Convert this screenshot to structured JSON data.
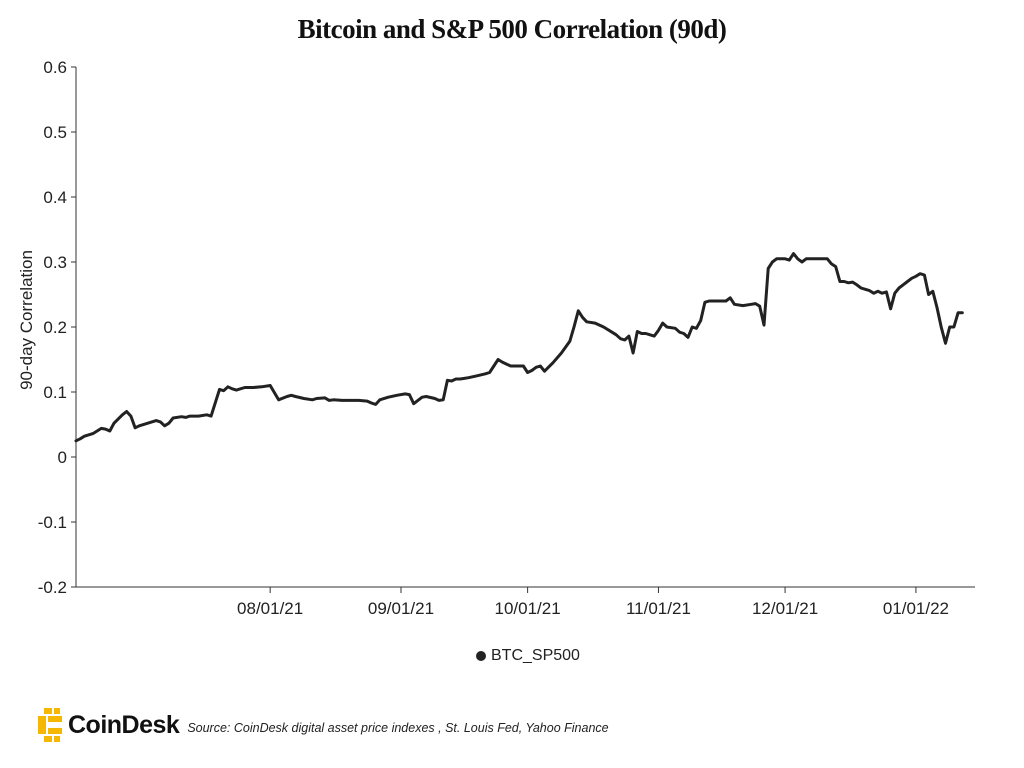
{
  "chart_data": {
    "type": "line",
    "title": "Bitcoin and S&P 500 Correlation (90d)",
    "ylabel": "90-day Correlation",
    "xlabel": "",
    "ylim": [
      -0.2,
      0.6
    ],
    "yticks": [
      "0.6",
      "0.5",
      "0.4",
      "0.3",
      "0.2",
      "0.1",
      "0",
      "-0.1",
      "-0.2"
    ],
    "ytick_values": [
      0.6,
      0.5,
      0.4,
      0.3,
      0.2,
      0.1,
      0,
      -0.1,
      -0.2
    ],
    "xlim": [
      "2021-06-16",
      "2022-01-15"
    ],
    "xticks": [
      {
        "label": "08/01/21",
        "date": "2021-08-01"
      },
      {
        "label": "09/01/21",
        "date": "2021-09-01"
      },
      {
        "label": "10/01/21",
        "date": "2021-10-01"
      },
      {
        "label": "11/01/21",
        "date": "2021-11-01"
      },
      {
        "label": "12/01/21",
        "date": "2021-12-01"
      },
      {
        "label": "01/01/22",
        "date": "2022-01-01"
      }
    ],
    "grid": false,
    "legend_position": "bottom-center",
    "series": [
      {
        "name": "BTC_SP500",
        "color": "#222222",
        "points": [
          [
            "2021-06-16",
            0.025
          ],
          [
            "2021-06-17",
            0.028
          ],
          [
            "2021-06-18",
            0.032
          ],
          [
            "2021-06-20",
            0.036
          ],
          [
            "2021-06-21",
            0.04
          ],
          [
            "2021-06-22",
            0.044
          ],
          [
            "2021-06-23",
            0.043
          ],
          [
            "2021-06-24",
            0.04
          ],
          [
            "2021-06-25",
            0.052
          ],
          [
            "2021-06-27",
            0.065
          ],
          [
            "2021-06-28",
            0.07
          ],
          [
            "2021-06-29",
            0.063
          ],
          [
            "2021-06-30",
            0.045
          ],
          [
            "2021-07-01",
            0.048
          ],
          [
            "2021-07-03",
            0.052
          ],
          [
            "2021-07-05",
            0.056
          ],
          [
            "2021-07-06",
            0.054
          ],
          [
            "2021-07-07",
            0.048
          ],
          [
            "2021-07-08",
            0.052
          ],
          [
            "2021-07-09",
            0.06
          ],
          [
            "2021-07-11",
            0.062
          ],
          [
            "2021-07-12",
            0.061
          ],
          [
            "2021-07-13",
            0.063
          ],
          [
            "2021-07-15",
            0.063
          ],
          [
            "2021-07-17",
            0.065
          ],
          [
            "2021-07-18",
            0.063
          ],
          [
            "2021-07-20",
            0.104
          ],
          [
            "2021-07-21",
            0.102
          ],
          [
            "2021-07-22",
            0.108
          ],
          [
            "2021-07-23",
            0.105
          ],
          [
            "2021-07-24",
            0.103
          ],
          [
            "2021-07-26",
            0.107
          ],
          [
            "2021-07-28",
            0.107
          ],
          [
            "2021-07-30",
            0.108
          ],
          [
            "2021-08-01",
            0.11
          ],
          [
            "2021-08-03",
            0.088
          ],
          [
            "2021-08-05",
            0.093
          ],
          [
            "2021-08-06",
            0.095
          ],
          [
            "2021-08-07",
            0.093
          ],
          [
            "2021-08-09",
            0.09
          ],
          [
            "2021-08-11",
            0.088
          ],
          [
            "2021-08-12",
            0.09
          ],
          [
            "2021-08-14",
            0.091
          ],
          [
            "2021-08-15",
            0.087
          ],
          [
            "2021-08-16",
            0.088
          ],
          [
            "2021-08-18",
            0.087
          ],
          [
            "2021-08-20",
            0.087
          ],
          [
            "2021-08-22",
            0.087
          ],
          [
            "2021-08-24",
            0.086
          ],
          [
            "2021-08-25",
            0.083
          ],
          [
            "2021-08-26",
            0.081
          ],
          [
            "2021-08-27",
            0.088
          ],
          [
            "2021-08-29",
            0.092
          ],
          [
            "2021-08-31",
            0.095
          ],
          [
            "2021-09-02",
            0.097
          ],
          [
            "2021-09-03",
            0.096
          ],
          [
            "2021-09-04",
            0.082
          ],
          [
            "2021-09-06",
            0.092
          ],
          [
            "2021-09-07",
            0.093
          ],
          [
            "2021-09-09",
            0.09
          ],
          [
            "2021-09-10",
            0.087
          ],
          [
            "2021-09-11",
            0.088
          ],
          [
            "2021-09-12",
            0.118
          ],
          [
            "2021-09-13",
            0.117
          ],
          [
            "2021-09-14",
            0.12
          ],
          [
            "2021-09-15",
            0.12
          ],
          [
            "2021-09-16",
            0.121
          ],
          [
            "2021-09-17",
            0.122
          ],
          [
            "2021-09-19",
            0.125
          ],
          [
            "2021-09-21",
            0.128
          ],
          [
            "2021-09-22",
            0.13
          ],
          [
            "2021-09-24",
            0.15
          ],
          [
            "2021-09-25",
            0.146
          ],
          [
            "2021-09-26",
            0.143
          ],
          [
            "2021-09-27",
            0.14
          ],
          [
            "2021-09-28",
            0.14
          ],
          [
            "2021-09-29",
            0.14
          ],
          [
            "2021-09-30",
            0.14
          ],
          [
            "2021-10-01",
            0.13
          ],
          [
            "2021-10-02",
            0.133
          ],
          [
            "2021-10-03",
            0.138
          ],
          [
            "2021-10-04",
            0.14
          ],
          [
            "2021-10-05",
            0.132
          ],
          [
            "2021-10-07",
            0.145
          ],
          [
            "2021-10-09",
            0.16
          ],
          [
            "2021-10-11",
            0.178
          ],
          [
            "2021-10-12",
            0.2
          ],
          [
            "2021-10-13",
            0.225
          ],
          [
            "2021-10-14",
            0.215
          ],
          [
            "2021-10-15",
            0.208
          ],
          [
            "2021-10-17",
            0.206
          ],
          [
            "2021-10-19",
            0.2
          ],
          [
            "2021-10-21",
            0.192
          ],
          [
            "2021-10-22",
            0.188
          ],
          [
            "2021-10-23",
            0.182
          ],
          [
            "2021-10-24",
            0.18
          ],
          [
            "2021-10-25",
            0.186
          ],
          [
            "2021-10-26",
            0.16
          ],
          [
            "2021-10-27",
            0.193
          ],
          [
            "2021-10-28",
            0.19
          ],
          [
            "2021-10-29",
            0.19
          ],
          [
            "2021-10-30",
            0.188
          ],
          [
            "2021-10-31",
            0.186
          ],
          [
            "2021-11-01",
            0.195
          ],
          [
            "2021-11-02",
            0.206
          ],
          [
            "2021-11-03",
            0.2
          ],
          [
            "2021-11-05",
            0.198
          ],
          [
            "2021-11-06",
            0.192
          ],
          [
            "2021-11-07",
            0.19
          ],
          [
            "2021-11-08",
            0.184
          ],
          [
            "2021-11-09",
            0.2
          ],
          [
            "2021-11-10",
            0.198
          ],
          [
            "2021-11-11",
            0.21
          ],
          [
            "2021-11-12",
            0.238
          ],
          [
            "2021-11-13",
            0.24
          ],
          [
            "2021-11-14",
            0.24
          ],
          [
            "2021-11-16",
            0.24
          ],
          [
            "2021-11-17",
            0.24
          ],
          [
            "2021-11-18",
            0.245
          ],
          [
            "2021-11-19",
            0.235
          ],
          [
            "2021-11-21",
            0.233
          ],
          [
            "2021-11-23",
            0.235
          ],
          [
            "2021-11-24",
            0.236
          ],
          [
            "2021-11-25",
            0.232
          ],
          [
            "2021-11-26",
            0.203
          ],
          [
            "2021-11-27",
            0.29
          ],
          [
            "2021-11-28",
            0.3
          ],
          [
            "2021-11-29",
            0.305
          ],
          [
            "2021-12-01",
            0.305
          ],
          [
            "2021-12-02",
            0.303
          ],
          [
            "2021-12-03",
            0.313
          ],
          [
            "2021-12-04",
            0.305
          ],
          [
            "2021-12-05",
            0.3
          ],
          [
            "2021-12-06",
            0.305
          ],
          [
            "2021-12-08",
            0.305
          ],
          [
            "2021-12-09",
            0.305
          ],
          [
            "2021-12-11",
            0.305
          ],
          [
            "2021-12-12",
            0.297
          ],
          [
            "2021-12-13",
            0.293
          ],
          [
            "2021-12-14",
            0.27
          ],
          [
            "2021-12-15",
            0.27
          ],
          [
            "2021-12-16",
            0.268
          ],
          [
            "2021-12-17",
            0.269
          ],
          [
            "2021-12-18",
            0.265
          ],
          [
            "2021-12-19",
            0.26
          ],
          [
            "2021-12-20",
            0.258
          ],
          [
            "2021-12-21",
            0.256
          ],
          [
            "2021-12-22",
            0.252
          ],
          [
            "2021-12-23",
            0.255
          ],
          [
            "2021-12-24",
            0.252
          ],
          [
            "2021-12-25",
            0.254
          ],
          [
            "2021-12-26",
            0.228
          ],
          [
            "2021-12-27",
            0.252
          ],
          [
            "2021-12-28",
            0.26
          ],
          [
            "2021-12-29",
            0.265
          ],
          [
            "2021-12-30",
            0.27
          ],
          [
            "2021-12-31",
            0.275
          ],
          [
            "2022-01-01",
            0.278
          ],
          [
            "2022-01-02",
            0.282
          ],
          [
            "2022-01-03",
            0.28
          ],
          [
            "2022-01-04",
            0.25
          ],
          [
            "2022-01-05",
            0.255
          ],
          [
            "2022-01-06",
            0.23
          ],
          [
            "2022-01-07",
            0.2
          ],
          [
            "2022-01-08",
            0.175
          ],
          [
            "2022-01-09",
            0.2
          ],
          [
            "2022-01-10",
            0.2
          ],
          [
            "2022-01-11",
            0.222
          ],
          [
            "2022-01-12",
            0.222
          ]
        ]
      }
    ]
  },
  "legend": {
    "label": "BTC_SP500"
  },
  "footer": {
    "brand": "CoinDesk",
    "source": "Source: CoinDesk digital asset price indexes , St. Louis Fed, Yahoo Finance",
    "logo_color": "#F5B700"
  }
}
